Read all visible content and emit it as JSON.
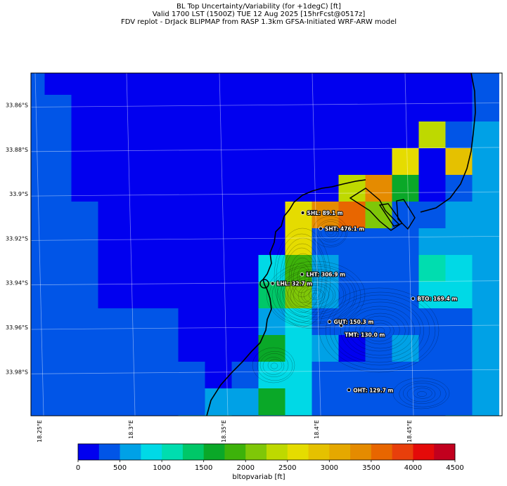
{
  "title": {
    "line1": "BL Top Uncertainty/Variability (for +1degC) [ft]",
    "line2": "Valid 1700 LST (1500Z) TUE 12 Aug 2025 [15hrFcst@0517z]",
    "line3": "FDV replot - DrJack BLIPMAP from RASP 1.3km GFSA-Initiated WRF-ARW model"
  },
  "colors": {
    "palette": [
      "#0100ef",
      "#0155e7",
      "#00a1e6",
      "#00d9e6",
      "#00ddaf",
      "#00c768",
      "#0aa828",
      "#3db20a",
      "#7fc708",
      "#bed900",
      "#e5dc00",
      "#e5c100",
      "#e5a800",
      "#e58b00",
      "#e86600",
      "#e83f0b",
      "#e40a09",
      "#c2001e"
    ],
    "coast": "#000000"
  },
  "chart_data": {
    "type": "heatmap",
    "variable": "bltopvariab [ft]",
    "levels": [
      0,
      250,
      500,
      750,
      1000,
      1250,
      1500,
      1750,
      2000,
      2250,
      2500,
      2750,
      3000,
      3250,
      3500,
      3750,
      4000,
      4250,
      4500
    ],
    "colorbar_ticks": [
      0,
      500,
      1000,
      1500,
      2000,
      2500,
      3000,
      3500,
      4000,
      4500
    ],
    "colorbar_label": "bltopvariab [ft]",
    "lat_labels": [
      "33.86°S",
      "33.88°S",
      "33.9°S",
      "33.92°S",
      "33.94°S",
      "33.96°S",
      "33.98°S"
    ],
    "lat_values": [
      -33.86,
      -33.88,
      -33.9,
      -33.92,
      -33.94,
      -33.96,
      -33.98
    ],
    "lon_labels": [
      "18.25°E",
      "18.3°E",
      "18.35°E",
      "18.4°E",
      "18.45°E"
    ],
    "lon_values": [
      18.25,
      18.3,
      18.35,
      18.4,
      18.45
    ],
    "lon_range": [
      18.25,
      18.5
    ],
    "lat_range": [
      -33.998,
      -33.844
    ],
    "grid_values": [
      [
        250,
        0,
        0,
        0,
        0,
        0,
        0,
        0,
        0,
        0,
        0,
        0,
        0,
        0,
        0,
        0,
        0,
        250
      ],
      [
        250,
        250,
        0,
        0,
        0,
        0,
        0,
        0,
        0,
        0,
        0,
        0,
        0,
        0,
        0,
        0,
        0,
        250
      ],
      [
        250,
        250,
        0,
        0,
        0,
        0,
        0,
        0,
        0,
        0,
        0,
        0,
        0,
        0,
        0,
        2400,
        250,
        500
      ],
      [
        250,
        250,
        0,
        0,
        0,
        0,
        0,
        0,
        0,
        0,
        0,
        0,
        0,
        0,
        2600,
        0,
        2900,
        500
      ],
      [
        250,
        250,
        0,
        0,
        0,
        0,
        0,
        0,
        0,
        0,
        0,
        0,
        2400,
        3250,
        1500,
        0,
        250,
        500
      ],
      [
        250,
        250,
        250,
        0,
        0,
        0,
        0,
        0,
        0,
        0,
        2600,
        3400,
        3550,
        2000,
        250,
        250,
        500,
        500
      ],
      [
        250,
        250,
        250,
        0,
        0,
        0,
        0,
        0,
        0,
        0,
        2600,
        250,
        250,
        250,
        250,
        500,
        500,
        500
      ],
      [
        250,
        250,
        250,
        0,
        0,
        0,
        0,
        0,
        0,
        800,
        1800,
        500,
        250,
        250,
        250,
        1000,
        750,
        500
      ],
      [
        250,
        250,
        250,
        0,
        0,
        0,
        0,
        0,
        0,
        1300,
        2100,
        500,
        250,
        250,
        250,
        750,
        750,
        500
      ],
      [
        250,
        250,
        250,
        250,
        250,
        250,
        0,
        0,
        0,
        500,
        750,
        250,
        250,
        250,
        250,
        250,
        250,
        500
      ],
      [
        250,
        250,
        250,
        250,
        250,
        250,
        0,
        0,
        0,
        1500,
        750,
        500,
        0,
        250,
        500,
        250,
        250,
        500
      ],
      [
        250,
        250,
        250,
        250,
        250,
        250,
        250,
        0,
        250,
        750,
        750,
        250,
        250,
        250,
        250,
        250,
        250,
        500
      ],
      [
        250,
        250,
        250,
        250,
        250,
        250,
        250,
        500,
        500,
        1650,
        750,
        250,
        250,
        250,
        250,
        250,
        250,
        500
      ],
      [
        250,
        250,
        250,
        250,
        250,
        250,
        500,
        750,
        500,
        750,
        500,
        250,
        250,
        250,
        250,
        250,
        500,
        500
      ],
      [
        500,
        250,
        250,
        250,
        250,
        250,
        750,
        1650,
        500,
        500,
        500,
        250,
        250,
        250,
        250,
        250,
        750,
        750
      ]
    ],
    "sites": [
      {
        "label": "SHL: 89.1 m",
        "lon": 18.392,
        "lat": -33.9085
      },
      {
        "label": "SHT: 476.1 m",
        "lon": 18.4015,
        "lat": -33.9156
      },
      {
        "label": "LHT: 306.9 m",
        "lon": 18.3916,
        "lat": -33.9362
      },
      {
        "label": "LHL: 32.7 m",
        "lon": 18.376,
        "lat": -33.9403
      },
      {
        "label": "BTO: 169.4 m",
        "lon": 18.4505,
        "lat": -33.9471
      },
      {
        "label": "GUT: 150.3 m",
        "lon": 18.4062,
        "lat": -33.9575
      },
      {
        "label": "TMT: 130.0 m",
        "lon": 18.4124,
        "lat": -33.9592
      },
      {
        "label": "OHT: 129.7 m",
        "lon": 18.4165,
        "lat": -33.9882
      }
    ]
  }
}
